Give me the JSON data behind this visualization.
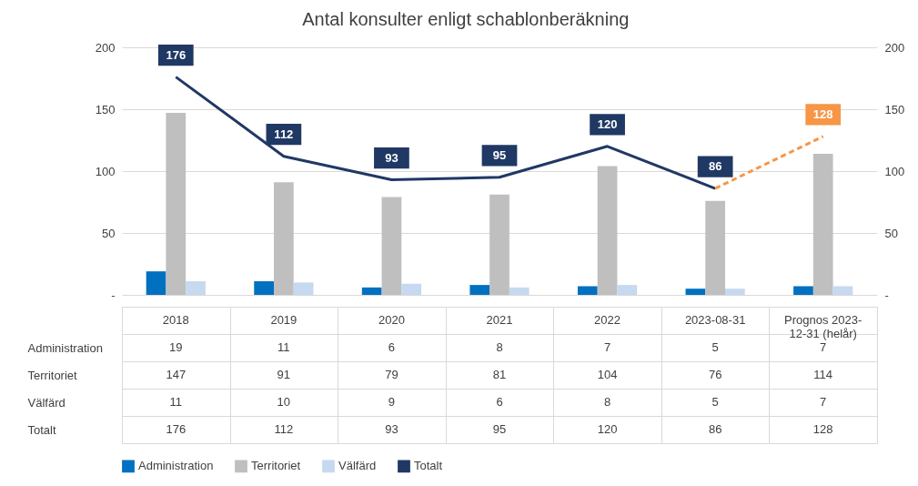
{
  "chart_data": {
    "type": "bar",
    "title": "Antal konsulter enligt schablonberäkning",
    "categories": [
      "2018",
      "2019",
      "2020",
      "2021",
      "2022",
      "2023-08-31",
      "Prognos 2023-12-31 (helår)"
    ],
    "ylim": [
      0,
      200
    ],
    "yticks": [
      {
        "value": 0,
        "label": "-"
      },
      50,
      100,
      150,
      200
    ],
    "y2lim": [
      0,
      200
    ],
    "y2ticks": [
      {
        "value": 0,
        "label": "-"
      },
      50,
      100,
      150,
      200
    ],
    "grid": "y",
    "legend": "bottom",
    "data_labels": true,
    "marker": "none",
    "annotations": [
      {
        "text": "176",
        "x": "2018",
        "y": 176
      },
      {
        "text": "112",
        "x": "2019",
        "y": 112
      },
      {
        "text": "93",
        "x": "2020",
        "y": 93
      },
      {
        "text": "95",
        "x": "2021",
        "y": 95
      },
      {
        "text": "120",
        "x": "2022",
        "y": 120
      }
    ],
    "series": [
      {
        "name": "Administration",
        "color": "#0070c0",
        "values": [
          19,
          11,
          6,
          8,
          7,
          5,
          7
        ]
      },
      {
        "name": "Territoriet",
        "color": "#bfbfbf",
        "values": [
          147,
          91,
          79,
          81,
          104,
          76,
          114
        ]
      },
      {
        "name": "Välfärd",
        "color": "#c6d9f0",
        "values": [
          11,
          10,
          9,
          6,
          8,
          5,
          7
        ]
      },
      {
        "name": "Totalt",
        "type": "line",
        "axis": "y2",
        "color": "#203864",
        "values": [
          176,
          112,
          93,
          95,
          120,
          86,
          null
        ],
        "value_labels": [
          "176",
          "112",
          "93",
          "95",
          "120",
          "86",
          "128"
        ]
      },
      {
        "type": "line",
        "axis": "y2",
        "color": "#f79646",
        "line_style": "dashed",
        "values": [
          null,
          null,
          null,
          null,
          null,
          86,
          128
        ]
      }
    ]
  }
}
